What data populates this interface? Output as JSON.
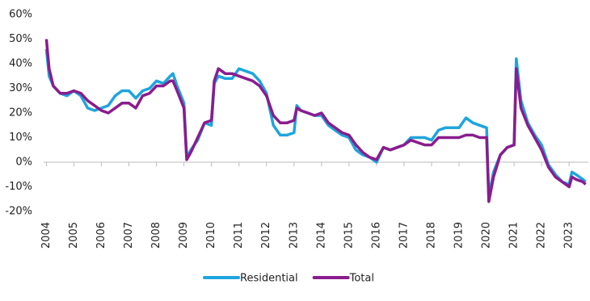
{
  "chart_data": {
    "type": "line",
    "x": [
      2004.0,
      2004.1,
      2004.25,
      2004.5,
      2004.75,
      2005.0,
      2005.25,
      2005.5,
      2005.75,
      2006.0,
      2006.25,
      2006.5,
      2006.75,
      2007.0,
      2007.25,
      2007.5,
      2007.75,
      2008.0,
      2008.25,
      2008.5,
      2008.6,
      2008.75,
      2009.0,
      2009.1,
      2009.25,
      2009.5,
      2009.75,
      2010.0,
      2010.1,
      2010.25,
      2010.5,
      2010.75,
      2011.0,
      2011.25,
      2011.5,
      2011.75,
      2012.0,
      2012.25,
      2012.5,
      2012.75,
      2013.0,
      2013.1,
      2013.25,
      2013.5,
      2013.75,
      2014.0,
      2014.25,
      2014.5,
      2014.75,
      2015.0,
      2015.25,
      2015.5,
      2015.75,
      2016.0,
      2016.25,
      2016.5,
      2016.75,
      2017.0,
      2017.25,
      2017.5,
      2017.75,
      2018.0,
      2018.25,
      2018.5,
      2018.75,
      2019.0,
      2019.25,
      2019.5,
      2019.75,
      2020.0,
      2020.08,
      2020.25,
      2020.5,
      2020.75,
      2021.0,
      2021.08,
      2021.25,
      2021.5,
      2021.75,
      2022.0,
      2022.25,
      2022.5,
      2022.75,
      2023.0,
      2023.1,
      2023.25,
      2023.5,
      2023.6
    ],
    "series": [
      {
        "name": "Residential",
        "color": "#1ea5de",
        "values": [
          46,
          35,
          31,
          28,
          27,
          29,
          27,
          22,
          21,
          22,
          23,
          27,
          29,
          29,
          26,
          29,
          30,
          33,
          32,
          35,
          36,
          31,
          24,
          2,
          5,
          9,
          16,
          15,
          32,
          35,
          34,
          34,
          38,
          37,
          36,
          33,
          28,
          15,
          11,
          11,
          12,
          23,
          21,
          20,
          19,
          19,
          15,
          13,
          11,
          10,
          5,
          3,
          2,
          0,
          6,
          5,
          6,
          7,
          10,
          10,
          10,
          9,
          13,
          14,
          14,
          14,
          18,
          16,
          15,
          14,
          -14,
          -4,
          3,
          6,
          7,
          42,
          25,
          16,
          11,
          7,
          -1,
          -5,
          -8,
          -9,
          -4,
          -5,
          -7,
          -8
        ]
      },
      {
        "name": "Total",
        "color": "#8a1c8e",
        "values": [
          50,
          38,
          31,
          28,
          28,
          29,
          28,
          25,
          23,
          21,
          20,
          22,
          24,
          24,
          22,
          27,
          28,
          31,
          31,
          33,
          33,
          29,
          22,
          1,
          4,
          10,
          16,
          17,
          33,
          38,
          36,
          36,
          35,
          34,
          33,
          31,
          27,
          19,
          16,
          16,
          17,
          22,
          21,
          20,
          19,
          20,
          16,
          14,
          12,
          11,
          7,
          4,
          2,
          1,
          6,
          5,
          6,
          7,
          9,
          8,
          7,
          7,
          10,
          10,
          10,
          10,
          11,
          11,
          10,
          10,
          -16,
          -6,
          3,
          6,
          7,
          38,
          22,
          15,
          10,
          5,
          -2,
          -6,
          -8,
          -10,
          -6,
          -7,
          -8,
          -9
        ]
      }
    ],
    "xlim": [
      2003.9,
      2023.7
    ],
    "xticks": [
      2004,
      2005,
      2006,
      2007,
      2008,
      2009,
      2010,
      2011,
      2012,
      2013,
      2014,
      2015,
      2016,
      2017,
      2018,
      2019,
      2020,
      2021,
      2022,
      2023
    ],
    "ylim": [
      -20,
      60
    ],
    "yticks": [
      {
        "value": -20,
        "label": "-20%"
      },
      {
        "value": -10,
        "label": "-10%"
      },
      {
        "value": 0,
        "label": "0%"
      },
      {
        "value": 10,
        "label": "10%"
      },
      {
        "value": 20,
        "label": "20%"
      },
      {
        "value": 30,
        "label": "30%"
      },
      {
        "value": 40,
        "label": "40%"
      },
      {
        "value": 50,
        "label": "50%"
      },
      {
        "value": 60,
        "label": "60%"
      }
    ],
    "grid": false,
    "legend": "bottom"
  }
}
